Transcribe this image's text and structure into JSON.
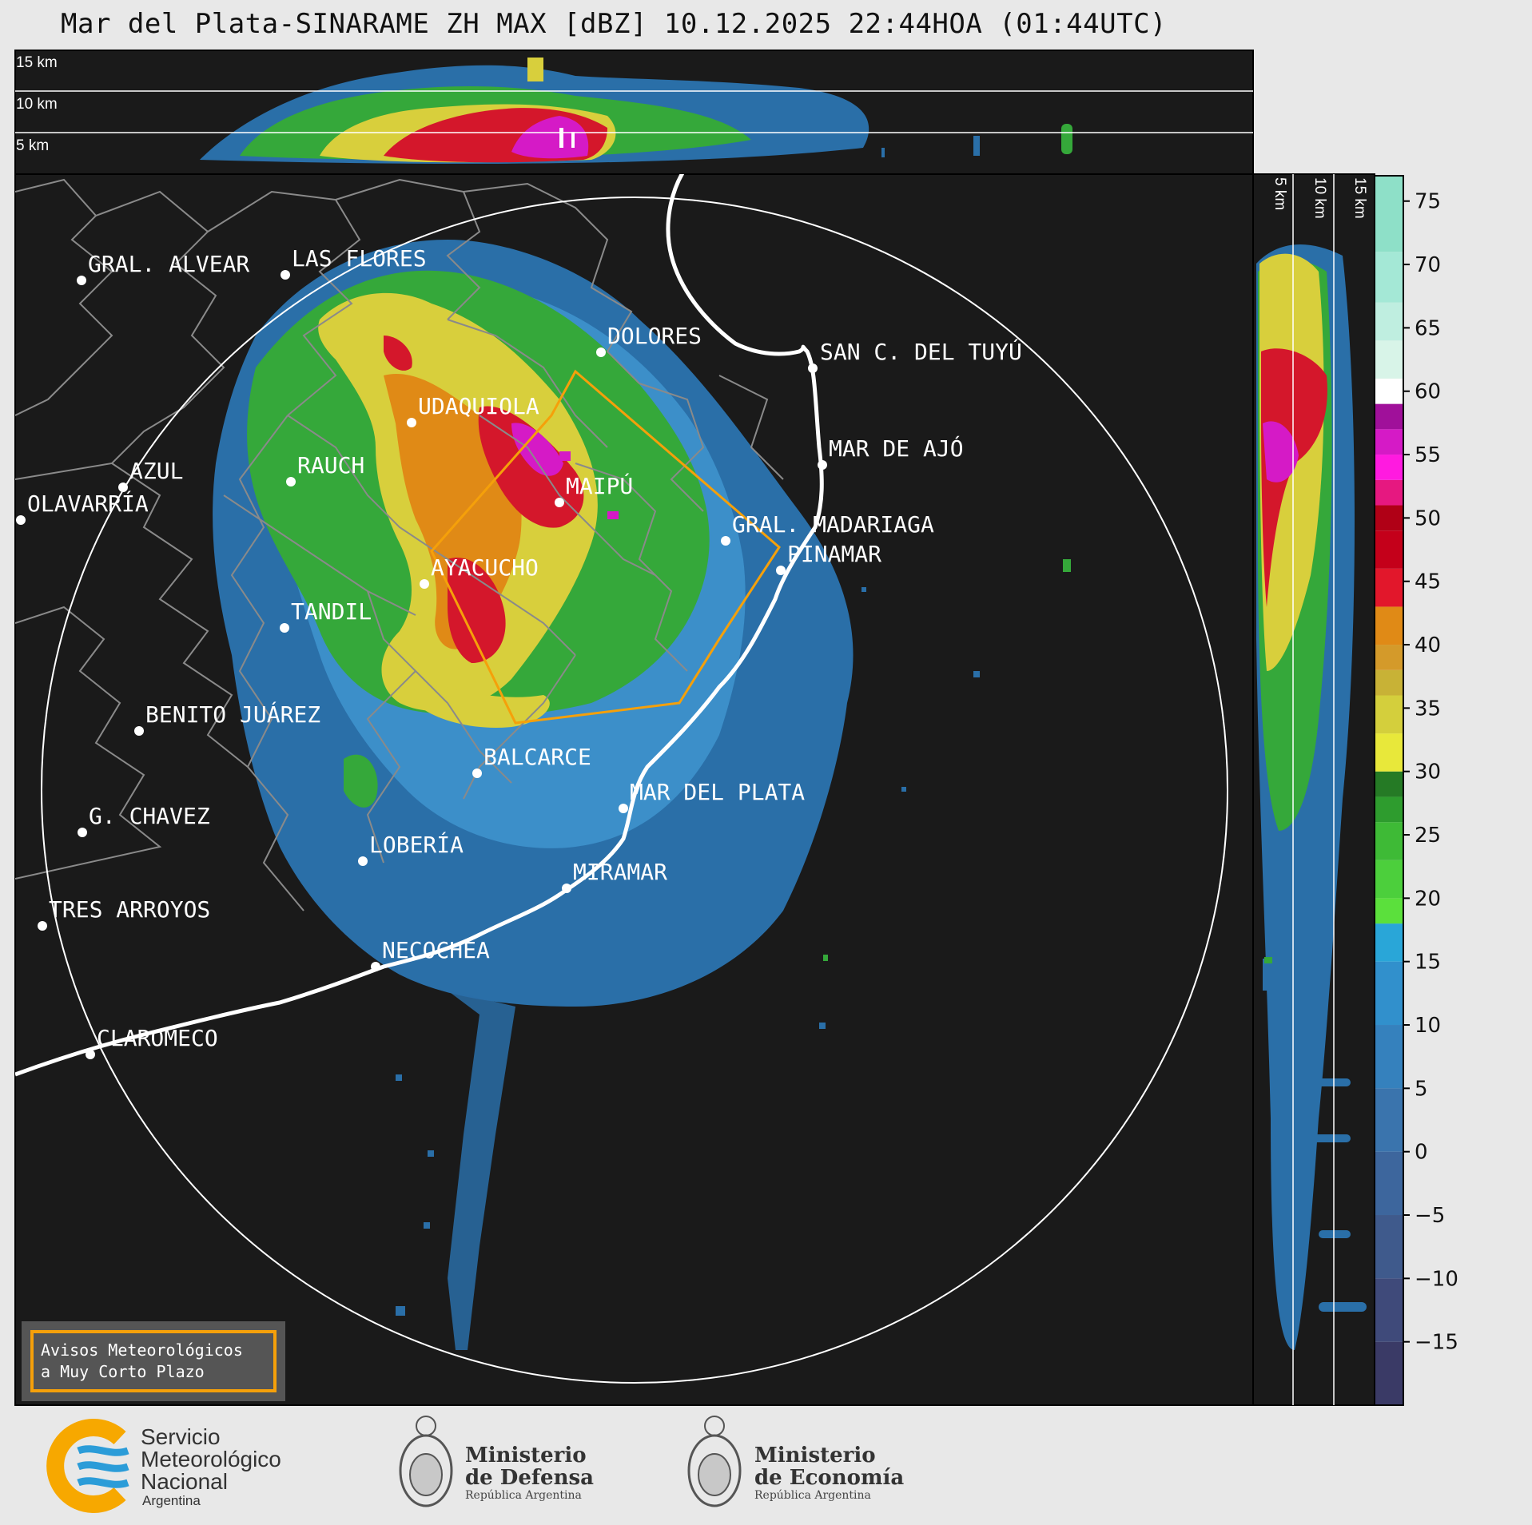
{
  "title": "Mar del Plata-SINARAME ZH MAX [dBZ] 10.12.2025 22:44HOA (01:44UTC)",
  "top_panel_altitudes": [
    "15 km",
    "10 km",
    "5 km"
  ],
  "side_panel_altitudes": [
    "5 km",
    "10 km",
    "15 km"
  ],
  "colorbar": {
    "ticks": [
      "75",
      "70",
      "65",
      "60",
      "55",
      "50",
      "45",
      "40",
      "35",
      "30",
      "25",
      "20",
      "15",
      "10",
      "5",
      "0",
      "−5",
      "−10",
      "−15"
    ]
  },
  "cities": [
    {
      "name": "GRAL. ALVEAR"
    },
    {
      "name": "LAS FLORES"
    },
    {
      "name": "DOLORES"
    },
    {
      "name": "SAN C. DEL TUYÚ"
    },
    {
      "name": "UDAQUIOLA"
    },
    {
      "name": "MAR DE AJÓ"
    },
    {
      "name": "AZUL"
    },
    {
      "name": "RAUCH"
    },
    {
      "name": "MAIPÚ"
    },
    {
      "name": "OLAVARRÍA"
    },
    {
      "name": "GRAL. MADARIAGA"
    },
    {
      "name": "PINAMAR"
    },
    {
      "name": "AYACUCHO"
    },
    {
      "name": "TANDIL"
    },
    {
      "name": "BENITO JUÁREZ"
    },
    {
      "name": "BALCARCE"
    },
    {
      "name": "MAR DEL PLATA"
    },
    {
      "name": "G. CHAVEZ"
    },
    {
      "name": "LOBERÍA"
    },
    {
      "name": "MIRAMAR"
    },
    {
      "name": "TRES ARROYOS"
    },
    {
      "name": "NECOCHEA"
    },
    {
      "name": "CLAROMECO"
    }
  ],
  "legend_box": {
    "line1": "Avisos Meteorológicos",
    "line2": "a Muy Corto Plazo",
    "border_color": "#f5a00a"
  },
  "footer": {
    "smn": {
      "line1": "Servicio",
      "line2": "Meteorológico",
      "line3": "Nacional",
      "line4": "Argentina"
    },
    "defensa": {
      "line1": "Ministerio",
      "line2": "de Defensa",
      "line3": "República Argentina"
    },
    "economia": {
      "line1": "Ministerio",
      "line2": "de Economía",
      "line3": "República Argentina"
    }
  },
  "colors": {
    "background": "#1a1a1a",
    "page": "#e8e8e8",
    "warning": "#f5a00a",
    "smn_blue": "#2b9cd8",
    "smn_orange": "#f7a800"
  }
}
